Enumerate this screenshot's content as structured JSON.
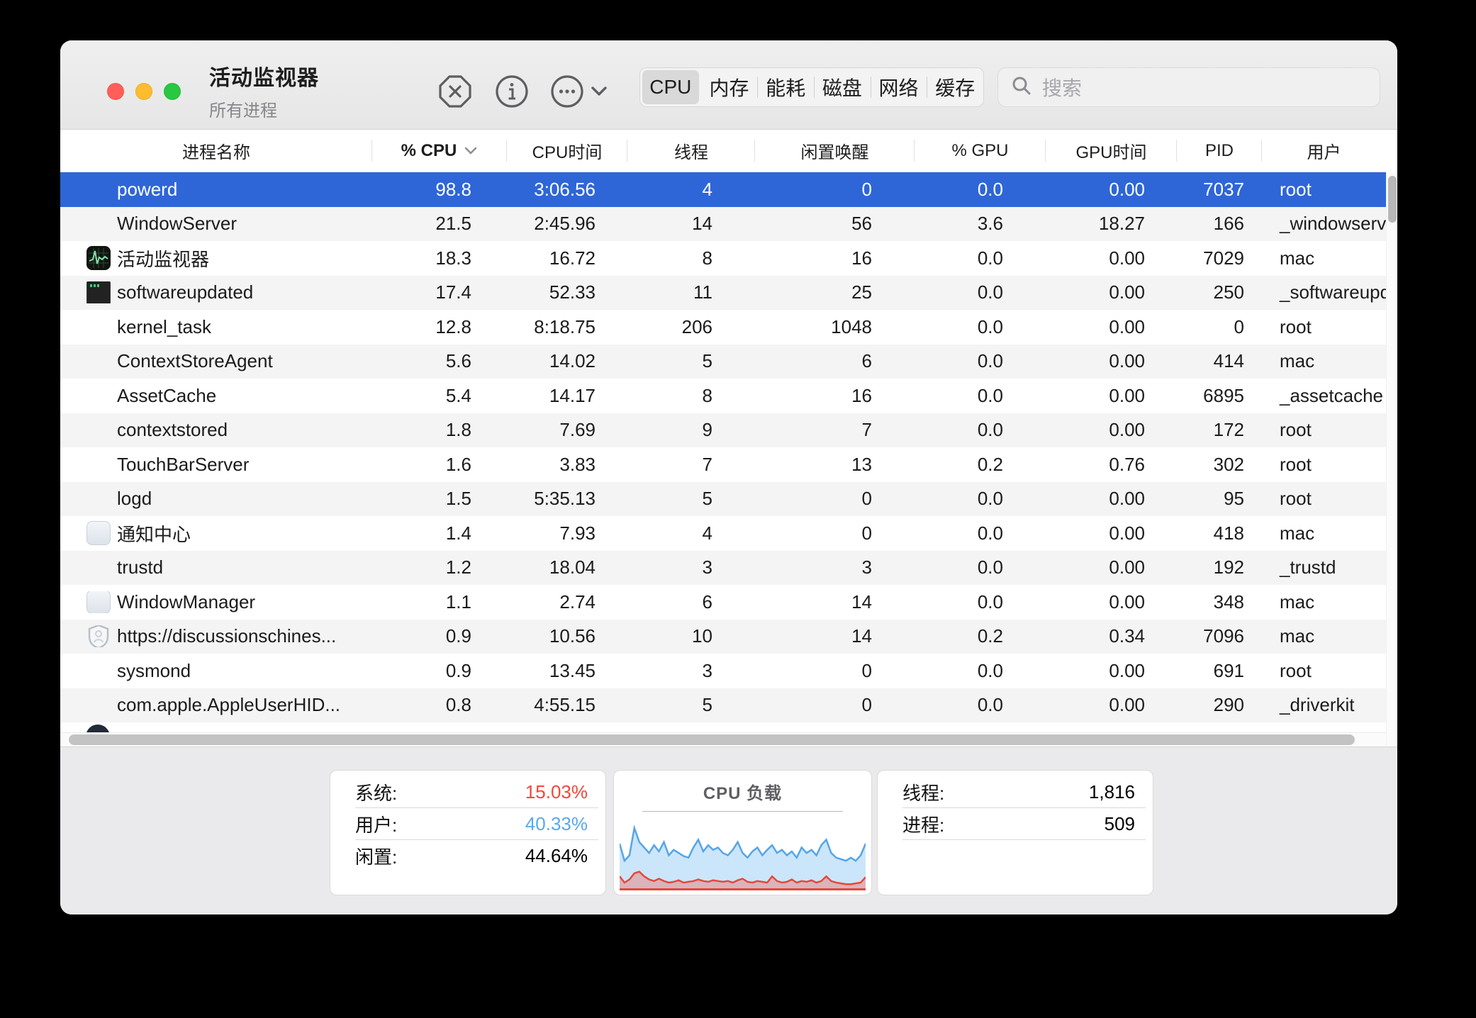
{
  "window": {
    "title": "活动监视器",
    "subtitle": "所有进程"
  },
  "toolbar": {
    "quit_icon": "close-octagon-icon",
    "info_icon": "info-icon",
    "actions_icon": "ellipsis-circle-icon",
    "tabs": [
      {
        "id": "cpu",
        "label": "CPU",
        "selected": true
      },
      {
        "id": "memory",
        "label": "内存",
        "selected": false
      },
      {
        "id": "energy",
        "label": "能耗",
        "selected": false
      },
      {
        "id": "disk",
        "label": "磁盘",
        "selected": false
      },
      {
        "id": "network",
        "label": "网络",
        "selected": false
      },
      {
        "id": "cache",
        "label": "缓存",
        "selected": false
      }
    ],
    "search": {
      "placeholder": "搜索"
    }
  },
  "table": {
    "columns": [
      {
        "key": "name",
        "label": "进程名称"
      },
      {
        "key": "cpu",
        "label": "% CPU",
        "sorted": "desc"
      },
      {
        "key": "cputime",
        "label": "CPU时间"
      },
      {
        "key": "threads",
        "label": "线程"
      },
      {
        "key": "idle",
        "label": "闲置唤醒"
      },
      {
        "key": "gpu",
        "label": "% GPU"
      },
      {
        "key": "gputime",
        "label": "GPU时间"
      },
      {
        "key": "pid",
        "label": "PID"
      },
      {
        "key": "user",
        "label": "用户"
      }
    ],
    "rows": [
      {
        "name": "powerd",
        "cpu": "98.8",
        "cputime": "3:06.56",
        "threads": "4",
        "idle": "0",
        "gpu": "0.0",
        "gputime": "0.00",
        "pid": "7037",
        "user": "root",
        "icon": "",
        "selected": true
      },
      {
        "name": "WindowServer",
        "cpu": "21.5",
        "cputime": "2:45.96",
        "threads": "14",
        "idle": "56",
        "gpu": "3.6",
        "gputime": "18.27",
        "pid": "166",
        "user": "_windowserver",
        "icon": ""
      },
      {
        "name": "活动监视器",
        "cpu": "18.3",
        "cputime": "16.72",
        "threads": "8",
        "idle": "16",
        "gpu": "0.0",
        "gputime": "0.00",
        "pid": "7029",
        "user": "mac",
        "icon": "activity-monitor"
      },
      {
        "name": "softwareupdated",
        "cpu": "17.4",
        "cputime": "52.33",
        "threads": "11",
        "idle": "25",
        "gpu": "0.0",
        "gputime": "0.00",
        "pid": "250",
        "user": "_softwareupda",
        "icon": "terminal"
      },
      {
        "name": "kernel_task",
        "cpu": "12.8",
        "cputime": "8:18.75",
        "threads": "206",
        "idle": "1048",
        "gpu": "0.0",
        "gputime": "0.00",
        "pid": "0",
        "user": "root",
        "icon": ""
      },
      {
        "name": "ContextStoreAgent",
        "cpu": "5.6",
        "cputime": "14.02",
        "threads": "5",
        "idle": "6",
        "gpu": "0.0",
        "gputime": "0.00",
        "pid": "414",
        "user": "mac",
        "icon": ""
      },
      {
        "name": "AssetCache",
        "cpu": "5.4",
        "cputime": "14.17",
        "threads": "8",
        "idle": "16",
        "gpu": "0.0",
        "gputime": "0.00",
        "pid": "6895",
        "user": "_assetcache",
        "icon": ""
      },
      {
        "name": "contextstored",
        "cpu": "1.8",
        "cputime": "7.69",
        "threads": "9",
        "idle": "7",
        "gpu": "0.0",
        "gputime": "0.00",
        "pid": "172",
        "user": "root",
        "icon": ""
      },
      {
        "name": "TouchBarServer",
        "cpu": "1.6",
        "cputime": "3.83",
        "threads": "7",
        "idle": "13",
        "gpu": "0.2",
        "gputime": "0.76",
        "pid": "302",
        "user": "root",
        "icon": ""
      },
      {
        "name": "logd",
        "cpu": "1.5",
        "cputime": "5:35.13",
        "threads": "5",
        "idle": "0",
        "gpu": "0.0",
        "gputime": "0.00",
        "pid": "95",
        "user": "root",
        "icon": ""
      },
      {
        "name": "通知中心",
        "cpu": "1.4",
        "cputime": "7.93",
        "threads": "4",
        "idle": "0",
        "gpu": "0.0",
        "gputime": "0.00",
        "pid": "418",
        "user": "mac",
        "icon": "panel"
      },
      {
        "name": "trustd",
        "cpu": "1.2",
        "cputime": "18.04",
        "threads": "3",
        "idle": "3",
        "gpu": "0.0",
        "gputime": "0.00",
        "pid": "192",
        "user": "_trustd",
        "icon": ""
      },
      {
        "name": "WindowManager",
        "cpu": "1.1",
        "cputime": "2.74",
        "threads": "6",
        "idle": "14",
        "gpu": "0.0",
        "gputime": "0.00",
        "pid": "348",
        "user": "mac",
        "icon": "panel"
      },
      {
        "name": "https://discussionschines...",
        "cpu": "0.9",
        "cputime": "10.56",
        "threads": "10",
        "idle": "14",
        "gpu": "0.2",
        "gputime": "0.34",
        "pid": "7096",
        "user": "mac",
        "icon": "shield"
      },
      {
        "name": "sysmond",
        "cpu": "0.9",
        "cputime": "13.45",
        "threads": "3",
        "idle": "0",
        "gpu": "0.0",
        "gputime": "0.00",
        "pid": "691",
        "user": "root",
        "icon": ""
      },
      {
        "name": "com.apple.AppleUserHID...",
        "cpu": "0.8",
        "cputime": "4:55.15",
        "threads": "5",
        "idle": "0",
        "gpu": "0.0",
        "gputime": "0.00",
        "pid": "290",
        "user": "_driverkit",
        "icon": ""
      }
    ]
  },
  "footer": {
    "cpu_stats": [
      {
        "label": "系统:",
        "value": "15.03%",
        "color": "#f4463b"
      },
      {
        "label": "用户:",
        "value": "40.33%",
        "color": "#57a9f0"
      },
      {
        "label": "闲置:",
        "value": "44.64%",
        "color": "#000000"
      }
    ],
    "counts": [
      {
        "label": "线程:",
        "value": "1,816",
        "color": "#000000"
      },
      {
        "label": "进程:",
        "value": "509",
        "color": "#000000"
      }
    ],
    "chart_data": {
      "type": "area",
      "title": "CPU 负载",
      "ylim": [
        0,
        100
      ],
      "series": [
        {
          "name": "user",
          "color": "#56a5e8",
          "fill": "rgba(140,200,245,0.45)",
          "values": [
            60,
            38,
            45,
            80,
            62,
            55,
            48,
            58,
            50,
            62,
            45,
            52,
            48,
            44,
            42,
            55,
            65,
            50,
            58,
            52,
            55,
            48,
            45,
            52,
            62,
            48,
            42,
            50,
            55,
            45,
            52,
            58,
            48,
            52,
            45,
            50,
            42,
            55,
            48,
            52,
            45,
            58,
            65,
            48,
            42,
            40,
            38,
            42,
            38,
            45,
            60
          ]
        },
        {
          "name": "system",
          "color": "#e8473c",
          "fill": "rgba(236,120,110,0.45)",
          "values": [
            18,
            10,
            14,
            22,
            24,
            18,
            14,
            12,
            15,
            12,
            10,
            11,
            13,
            10,
            11,
            12,
            14,
            12,
            11,
            13,
            12,
            11,
            12,
            10,
            13,
            15,
            11,
            10,
            12,
            11,
            10,
            18,
            12,
            10,
            11,
            14,
            10,
            12,
            11,
            13,
            10,
            12,
            18,
            12,
            10,
            9,
            8,
            8,
            9,
            10,
            17
          ]
        }
      ]
    }
  },
  "colors": {
    "selection": "#2e66d8",
    "traffic_lights": [
      "#ff5f57",
      "#febc2e",
      "#28c840"
    ]
  }
}
